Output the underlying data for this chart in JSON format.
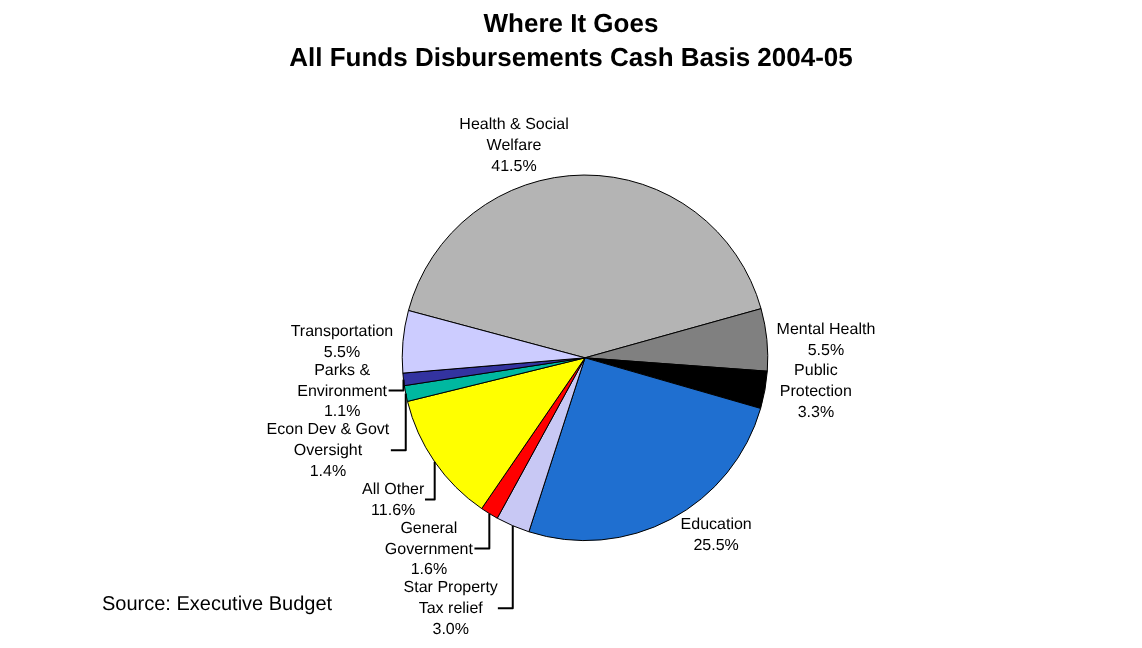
{
  "chart_data": {
    "type": "pie",
    "title": "Where It Goes\nAll Funds Disbursements Cash Basis 2004-05",
    "categories": [
      "Health & Social Welfare",
      "Mental Health",
      "Public Protection",
      "Education",
      "Star Property Tax relief",
      "General Government",
      "All Other",
      "Econ Dev & Govt Oversight",
      "Parks & Environment",
      "Transportation"
    ],
    "values": [
      41.5,
      5.5,
      3.3,
      25.5,
      3.0,
      1.6,
      11.6,
      1.4,
      1.1,
      5.5
    ],
    "colors": [
      "#b4b4b4",
      "#808080",
      "#000000",
      "#1f6fd0",
      "#c8c8f4",
      "#ff0000",
      "#ffff00",
      "#00b8a0",
      "#3333a0",
      "#ccccff"
    ],
    "value_labels": [
      "41.5%",
      "5.5%",
      "3.3%",
      "25.5%",
      "3.0%",
      "1.6%",
      "11.6%",
      "1.4%",
      "1.1%",
      "5.5%"
    ],
    "legend": false,
    "annotations": [
      "Source: Executive Budget"
    ]
  }
}
